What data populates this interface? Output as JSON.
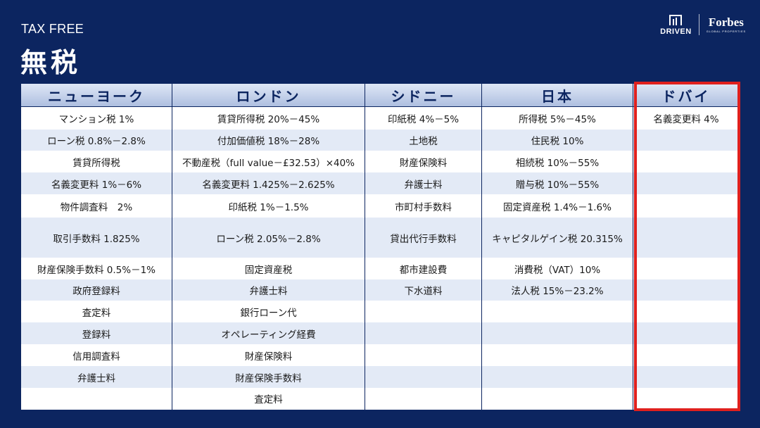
{
  "header": {
    "subtitle": "TAX FREE",
    "title": "無税"
  },
  "logos": {
    "driven": "DRIVEN",
    "forbes": "Forbes",
    "forbes_sub": "GLOBAL PROPERTIES"
  },
  "table": {
    "columns": [
      {
        "name": "ニューヨーク",
        "cells": [
          "マンション税 1%",
          "ローン税 0.8%－2.8%",
          "賃貸所得税",
          "名義変更料 1%－6%",
          "物件調査料　2%",
          "取引手数料 1.825%",
          "財産保険手数料 0.5%－1%",
          "政府登録料",
          "査定料",
          "登録料",
          "信用調査料",
          "弁護士料",
          ""
        ]
      },
      {
        "name": "ロンドン",
        "cells": [
          "賃貸所得税 20%－45%",
          "付加価値税 18%－28%",
          "不動産税（full value－£32.53）×40%",
          "名義変更料 1.425%－2.625%",
          "印紙税 1%－1.5%",
          "ローン税 2.05%－2.8%",
          "固定資産税",
          "弁護士料",
          "銀行ローン代",
          "オペレーティング経費",
          "財産保険料",
          "財産保険手数料",
          "査定料"
        ]
      },
      {
        "name": "シドニー",
        "cells": [
          "印紙税 4%－5%",
          "土地税",
          "財産保険料",
          "弁護士料",
          "市町村手数料",
          "貸出代行手数料",
          "都市建設費",
          "下水道料",
          "",
          "",
          "",
          "",
          ""
        ]
      },
      {
        "name": "日本",
        "cells": [
          "所得税 5%－45%",
          "住民税 10%",
          "相続税 10%－55%",
          "贈与税 10%－55%",
          "固定資産税 1.4%－1.6%",
          "キャピタルゲイン税 20.315%",
          "消費税（VAT）10%",
          "法人税 15%－23.2%",
          "",
          "",
          "",
          "",
          ""
        ]
      },
      {
        "name": "ドバイ",
        "cells": [
          "名義変更料 4%",
          "",
          "",
          "",
          "",
          "",
          "",
          "",
          "",
          "",
          "",
          "",
          ""
        ]
      }
    ]
  }
}
